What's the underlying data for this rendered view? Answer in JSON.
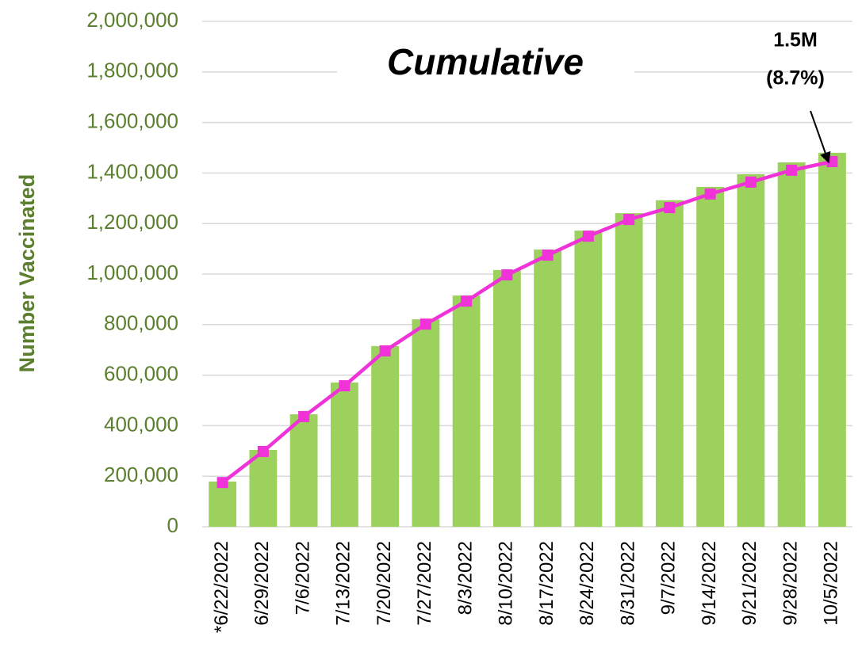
{
  "chart_data": {
    "type": "bar-line",
    "title": "Cumulative",
    "y_label": "Number Vaccinated",
    "annotation": [
      "1.5M",
      "(8.7%)"
    ],
    "categories": [
      "*6/22/2022",
      "6/29/2022",
      "7/6/2022",
      "7/13/2022",
      "7/20/2022",
      "7/27/2022",
      "8/3/2022",
      "8/10/2022",
      "8/17/2022",
      "8/24/2022",
      "8/31/2022",
      "9/7/2022",
      "9/14/2022",
      "9/21/2022",
      "9/28/2022",
      "10/5/2022"
    ],
    "series": [
      {
        "kind": "bar",
        "color": "#9dd15d",
        "values": [
          179000,
          304000,
          445000,
          571000,
          715000,
          821000,
          915000,
          1016000,
          1097000,
          1172000,
          1241000,
          1292000,
          1345000,
          1395000,
          1442000,
          1480000
        ]
      },
      {
        "kind": "line",
        "color": "#f032d8",
        "values": [
          175000,
          298000,
          436000,
          558000,
          696000,
          802000,
          893000,
          997000,
          1075000,
          1150000,
          1216000,
          1263000,
          1317000,
          1364000,
          1411000,
          1445000
        ]
      }
    ],
    "ylim": [
      0,
      2000000
    ],
    "yticks": [
      0,
      {
        "value": 200000,
        "label": "200,000"
      },
      {
        "value": 400000,
        "label": "400,000"
      },
      {
        "value": 600000,
        "label": "600,000"
      },
      {
        "value": 800000,
        "label": "800,000"
      },
      {
        "value": 1000000,
        "label": "1,000,000"
      },
      {
        "value": 1200000,
        "label": "1,200,000"
      },
      {
        "value": 1400000,
        "label": "1,400,000"
      },
      {
        "value": 1600000,
        "label": "1,600,000"
      },
      {
        "value": 1800000,
        "label": "1,800,000"
      },
      {
        "value": 2000000,
        "label": "2,000,000"
      }
    ],
    "grid": true
  }
}
